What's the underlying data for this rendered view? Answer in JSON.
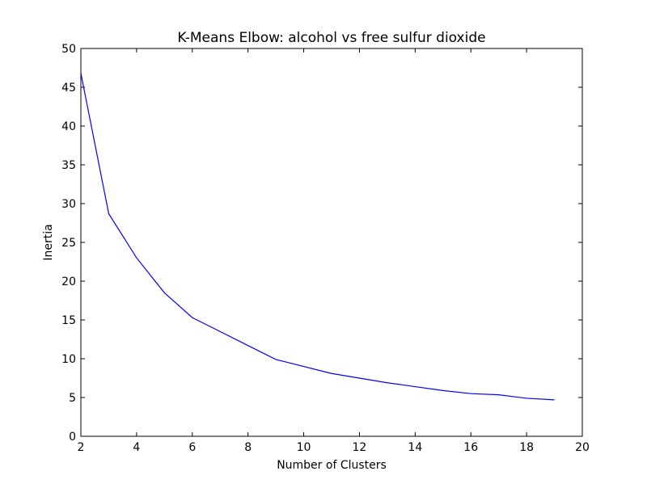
{
  "chart_data": {
    "type": "line",
    "title": "K-Means Elbow: alcohol vs free sulfur dioxide",
    "xlabel": "Number of Clusters",
    "ylabel": "Inertia",
    "xlim": [
      2,
      20
    ],
    "ylim": [
      0,
      50
    ],
    "xticks": [
      2,
      4,
      6,
      8,
      10,
      12,
      14,
      16,
      18,
      20
    ],
    "yticks": [
      0,
      5,
      10,
      15,
      20,
      25,
      30,
      35,
      40,
      45,
      50
    ],
    "grid": false,
    "line_color": "#0000ff",
    "series": [
      {
        "x": [
          2,
          3,
          4,
          5,
          6,
          7,
          8,
          9,
          10,
          11,
          12,
          13,
          14,
          15,
          16,
          17,
          18,
          19
        ],
        "values": [
          46.8,
          28.7,
          23.0,
          18.5,
          15.3,
          13.5,
          11.7,
          9.9,
          9.0,
          8.1,
          7.5,
          6.9,
          6.4,
          5.9,
          5.5,
          5.35,
          4.9,
          4.7
        ]
      }
    ]
  }
}
